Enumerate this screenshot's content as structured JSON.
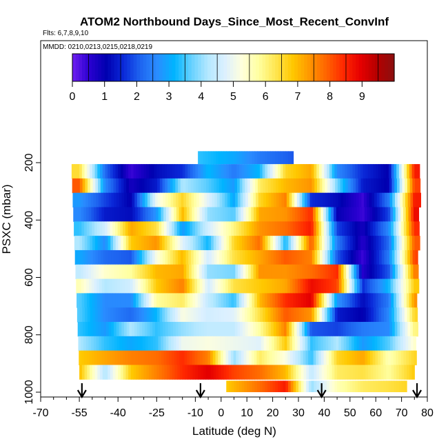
{
  "chart_data": {
    "type": "heatmap",
    "title": "ATOM2 Northbound Days_Since_Most_Recent_ConvInf",
    "flights_note": "Flts: 6,7,8,9,10",
    "date_note": "MMDD: 0210,0213,0215,0218,0219",
    "xlabel": "Latitude (deg N)",
    "ylabel": "PSXC (mbar)",
    "xlim": [
      -70,
      80
    ],
    "ylim": [
      1000,
      100
    ],
    "x_ticks": [
      -70,
      -55,
      -40,
      -25,
      -10,
      0,
      10,
      20,
      30,
      40,
      50,
      60,
      70,
      80
    ],
    "y_ticks": [
      200,
      400,
      600,
      800,
      1000
    ],
    "colorbar": {
      "min": 0,
      "max": 10,
      "ticks": [
        0,
        1,
        2,
        3,
        4,
        5,
        6,
        7,
        8,
        9
      ],
      "colors": [
        "#6f1ff0",
        "#2a00d0",
        "#0000b0",
        "#0a28d8",
        "#1e64f0",
        "#2a8cff",
        "#00b4ff",
        "#64d0ff",
        "#b4e8ff",
        "#dcf0ff",
        "#ffffdc",
        "#ffffa0",
        "#ffe650",
        "#ffc800",
        "#ff9600",
        "#ff6400",
        "#ff2800",
        "#e60000",
        "#b40000",
        "#8b0f0f"
      ]
    },
    "flight_markers_lat": [
      -54,
      -8,
      39,
      76
    ],
    "levels_mbar": [
      230,
      280,
      330,
      380,
      430,
      480,
      530,
      580,
      630,
      680,
      730,
      780,
      830,
      880,
      930
    ],
    "lat_nodes": [
      -55,
      -45,
      -35,
      -25,
      -15,
      -5,
      5,
      15,
      25,
      35,
      45,
      55,
      65,
      75
    ],
    "values_days": [
      [
        6.5,
        2.2,
        0.4,
        1.2,
        1.6,
        3.2,
        2.4,
        3.2,
        6.6,
        7.2,
        2.6,
        1.6,
        1.0,
        8.6
      ],
      [
        8.0,
        2.6,
        0.8,
        1.4,
        4.2,
        3.6,
        2.8,
        6.2,
        7.0,
        7.4,
        3.8,
        1.4,
        1.0,
        8.2
      ],
      [
        2.8,
        1.8,
        1.0,
        5.0,
        6.6,
        4.8,
        3.0,
        6.6,
        7.6,
        1.6,
        1.2,
        0.4,
        2.4,
        8.6
      ],
      [
        2.6,
        1.4,
        1.2,
        2.8,
        7.0,
        4.0,
        3.6,
        7.2,
        7.4,
        8.4,
        1.0,
        0.4,
        1.8,
        8.8
      ],
      [
        3.4,
        4.6,
        7.2,
        6.4,
        2.8,
        4.6,
        6.0,
        7.4,
        7.8,
        8.6,
        1.8,
        0.8,
        2.6,
        8.4
      ],
      [
        4.2,
        2.6,
        6.8,
        7.4,
        4.8,
        3.2,
        6.6,
        7.8,
        3.2,
        8.0,
        2.4,
        0.6,
        2.2,
        8.0
      ],
      [
        3.0,
        2.2,
        2.0,
        5.2,
        7.0,
        4.6,
        6.4,
        7.2,
        8.0,
        7.6,
        2.0,
        0.4,
        2.4,
        8.2
      ],
      [
        4.4,
        5.4,
        5.8,
        7.0,
        7.2,
        4.0,
        3.8,
        7.4,
        7.4,
        7.8,
        8.4,
        0.6,
        2.0,
        7.6
      ],
      [
        5.6,
        4.2,
        4.6,
        6.8,
        7.6,
        4.6,
        6.4,
        6.8,
        7.2,
        8.8,
        8.2,
        1.6,
        3.2,
        6.8
      ],
      [
        3.6,
        2.6,
        2.6,
        5.8,
        6.2,
        4.4,
        3.4,
        7.0,
        8.4,
        9.0,
        2.8,
        1.2,
        2.4,
        7.4
      ],
      [
        3.6,
        2.6,
        2.2,
        3.2,
        5.2,
        4.6,
        4.8,
        6.4,
        8.0,
        7.4,
        1.4,
        1.0,
        2.6,
        6.6
      ],
      [
        3.4,
        2.8,
        4.2,
        3.4,
        4.0,
        4.4,
        4.4,
        5.8,
        7.6,
        2.0,
        1.8,
        2.4,
        2.6,
        6.0
      ],
      [
        4.2,
        3.4,
        3.0,
        3.4,
        5.0,
        5.2,
        5.0,
        4.8,
        6.8,
        3.4,
        4.2,
        2.8,
        3.6,
        5.4
      ],
      [
        6.8,
        7.2,
        7.6,
        7.8,
        8.4,
        7.6,
        4.0,
        6.2,
        5.2,
        3.4,
        6.6,
        7.2,
        5.6,
        6.6
      ],
      [
        7.0,
        4.2,
        6.8,
        7.6,
        8.4,
        9.0,
        8.2,
        7.8,
        7.0,
        4.4,
        6.2,
        6.4,
        5.8,
        6.8
      ]
    ],
    "near_surface_band": {
      "level_mbar": 980,
      "lat_nodes": [
        2,
        15,
        25,
        35,
        45,
        55,
        65,
        72
      ],
      "values_days": [
        6.8,
        7.8,
        8.6,
        4.0,
        5.6,
        6.2,
        6.4,
        6.6
      ]
    }
  }
}
